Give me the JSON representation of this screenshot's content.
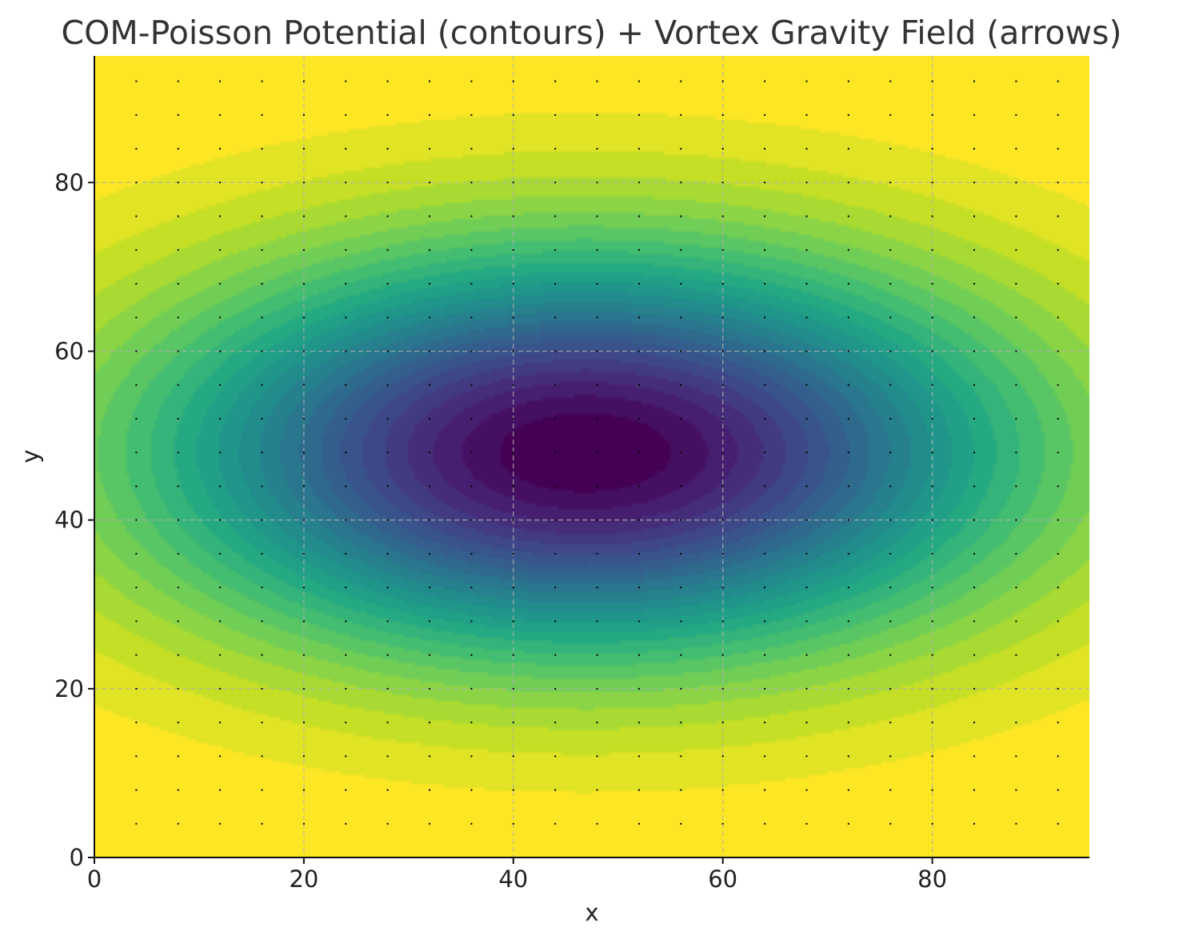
{
  "chart_data": {
    "type": "heatmap",
    "title": "COM-Poisson Potential (contours) + Vortex Gravity Field (arrows)",
    "xlabel": "x",
    "ylabel": "y",
    "xlim": [
      0,
      95
    ],
    "ylim": [
      0,
      95
    ],
    "xticks": [
      0,
      20,
      40,
      60,
      80
    ],
    "yticks": [
      0,
      20,
      40,
      60,
      80
    ],
    "x_tick_labels": [
      "0",
      "20",
      "40",
      "60",
      "80"
    ],
    "y_tick_labels": [
      "0",
      "20",
      "40",
      "60",
      "80"
    ],
    "grid": true,
    "colormap": "viridis",
    "contour_levels": 24,
    "potential_minima": [
      {
        "x": 38,
        "y": 48
      },
      {
        "x": 56,
        "y": 48
      }
    ],
    "arrow_grid": {
      "x_start": 4,
      "x_step": 4,
      "x_end": 92,
      "y_start": 4,
      "y_step": 4,
      "y_end": 92
    },
    "colors": {
      "axis": "#111111",
      "grid": "#b0b0b0",
      "arrow": "#000000",
      "title": "#333333"
    }
  }
}
